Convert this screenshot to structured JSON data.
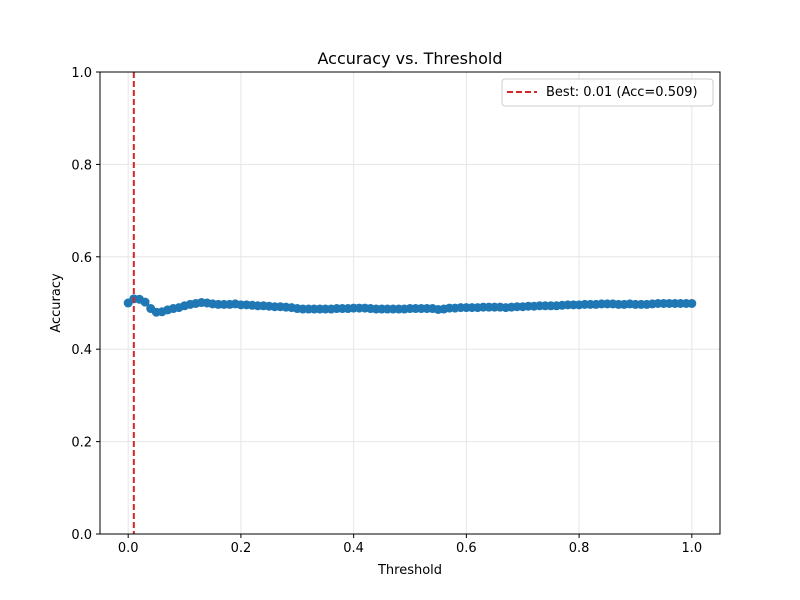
{
  "chart_data": {
    "type": "line",
    "title": "Accuracy vs. Threshold",
    "xlabel": "Threshold",
    "ylabel": "Accuracy",
    "xlim": [
      -0.05,
      1.05
    ],
    "ylim": [
      0.0,
      1.0
    ],
    "xticks": [
      "0.0",
      "0.2",
      "0.4",
      "0.6",
      "0.8",
      "1.0"
    ],
    "yticks": [
      "0.0",
      "0.2",
      "0.4",
      "0.6",
      "0.8",
      "1.0"
    ],
    "grid": true,
    "legend_position": "top-right",
    "best_line": {
      "x": 0.01,
      "label": "Best: 0.01 (Acc=0.509)",
      "color": "#d62728",
      "style": "dashed"
    },
    "series": [
      {
        "color": "#1f77b4",
        "marker": "circle",
        "x": [
          0.0,
          0.01,
          0.02,
          0.03,
          0.04,
          0.05,
          0.06,
          0.07,
          0.08,
          0.09,
          0.1,
          0.11,
          0.12,
          0.13,
          0.14,
          0.15,
          0.16,
          0.17,
          0.18,
          0.19,
          0.2,
          0.21,
          0.22,
          0.23,
          0.24,
          0.25,
          0.26,
          0.27,
          0.28,
          0.29,
          0.3,
          0.31,
          0.32,
          0.33,
          0.34,
          0.35,
          0.36,
          0.37,
          0.38,
          0.39,
          0.4,
          0.41,
          0.42,
          0.43,
          0.44,
          0.45,
          0.46,
          0.47,
          0.48,
          0.49,
          0.5,
          0.51,
          0.52,
          0.53,
          0.54,
          0.55,
          0.56,
          0.57,
          0.58,
          0.59,
          0.6,
          0.61,
          0.62,
          0.63,
          0.64,
          0.65,
          0.66,
          0.67,
          0.68,
          0.69,
          0.7,
          0.71,
          0.72,
          0.73,
          0.74,
          0.75,
          0.76,
          0.77,
          0.78,
          0.79,
          0.8,
          0.81,
          0.82,
          0.83,
          0.84,
          0.85,
          0.86,
          0.87,
          0.88,
          0.89,
          0.9,
          0.91,
          0.92,
          0.93,
          0.94,
          0.95,
          0.96,
          0.97,
          0.98,
          0.99,
          1.0
        ],
        "y": [
          0.5,
          0.509,
          0.508,
          0.502,
          0.488,
          0.48,
          0.481,
          0.485,
          0.488,
          0.49,
          0.494,
          0.497,
          0.499,
          0.501,
          0.5,
          0.498,
          0.497,
          0.497,
          0.497,
          0.498,
          0.496,
          0.496,
          0.495,
          0.494,
          0.494,
          0.493,
          0.492,
          0.492,
          0.491,
          0.49,
          0.488,
          0.487,
          0.487,
          0.487,
          0.487,
          0.487,
          0.487,
          0.488,
          0.488,
          0.488,
          0.489,
          0.489,
          0.489,
          0.488,
          0.487,
          0.487,
          0.487,
          0.487,
          0.487,
          0.487,
          0.488,
          0.488,
          0.488,
          0.488,
          0.488,
          0.486,
          0.487,
          0.489,
          0.489,
          0.49,
          0.49,
          0.49,
          0.49,
          0.491,
          0.491,
          0.491,
          0.491,
          0.49,
          0.491,
          0.492,
          0.492,
          0.493,
          0.493,
          0.494,
          0.494,
          0.494,
          0.494,
          0.495,
          0.496,
          0.496,
          0.496,
          0.497,
          0.497,
          0.497,
          0.498,
          0.498,
          0.498,
          0.497,
          0.497,
          0.498,
          0.497,
          0.497,
          0.497,
          0.498,
          0.499,
          0.499,
          0.499,
          0.499,
          0.499,
          0.499,
          0.499
        ]
      }
    ]
  }
}
